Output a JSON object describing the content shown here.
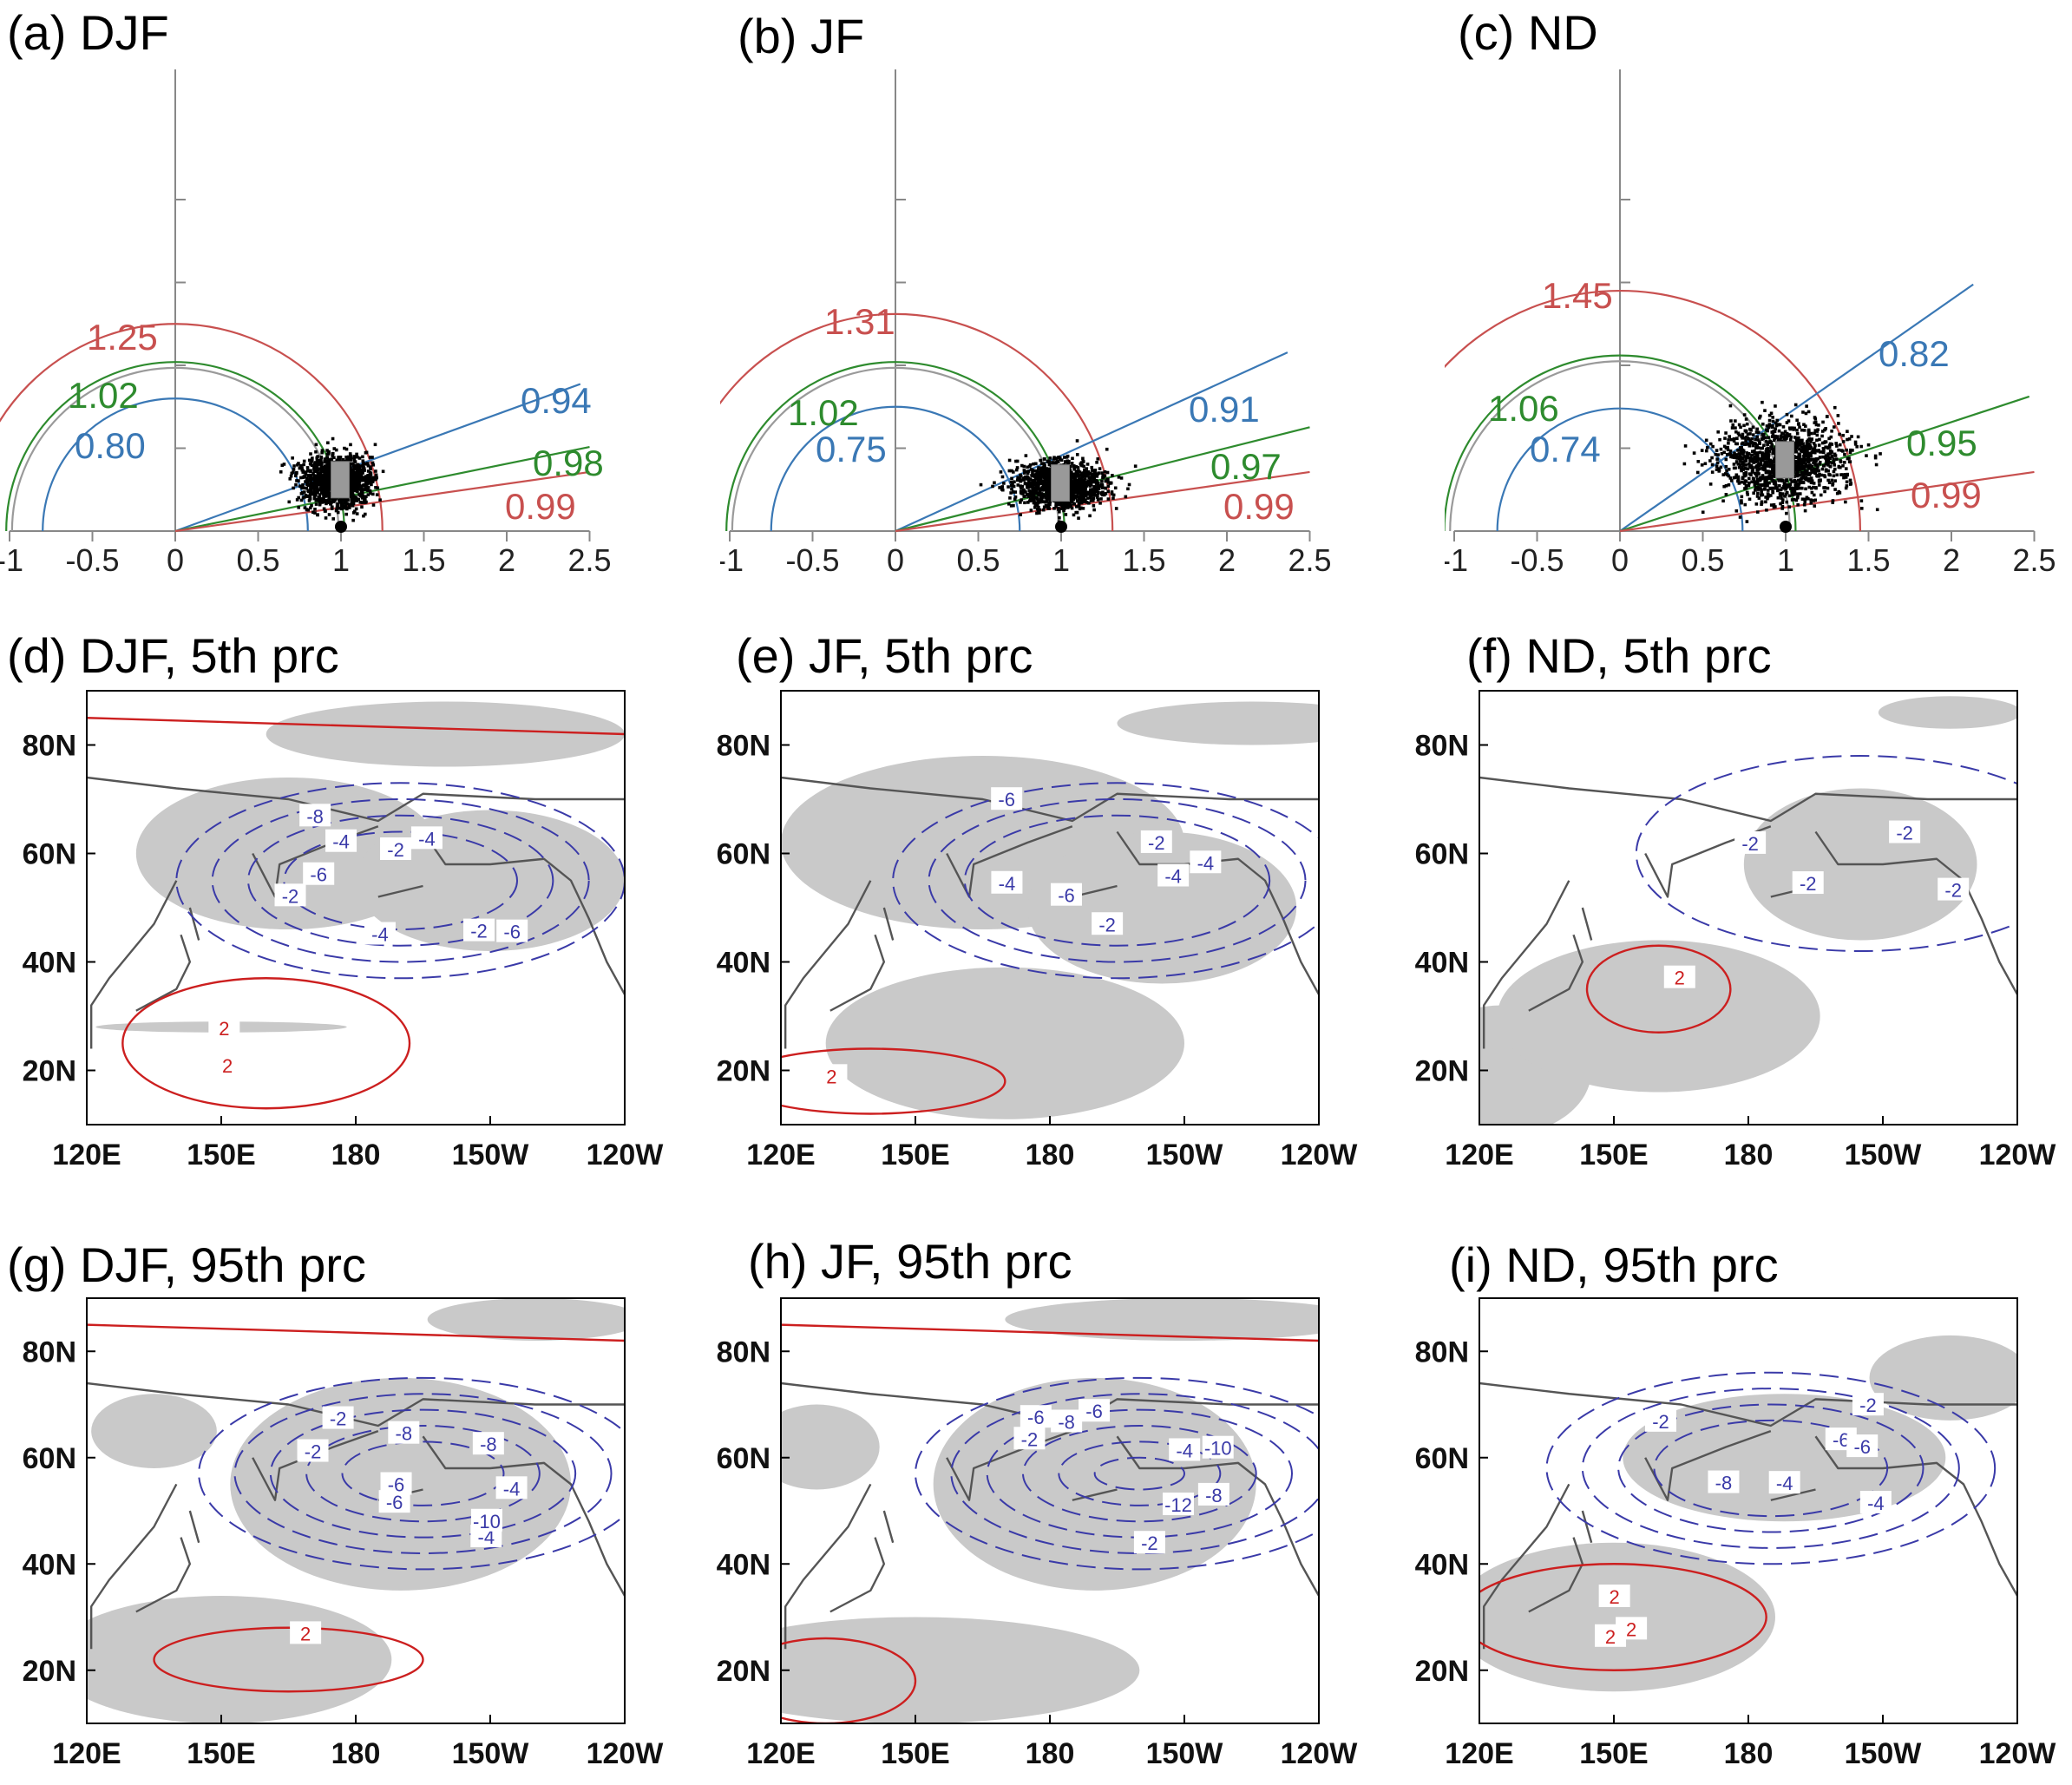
{
  "colors": {
    "red": "#c8504f",
    "green": "#2e8b2e",
    "blue": "#3a78b5",
    "gray": "#9a9a9a",
    "map_red": "#cc1f1f",
    "map_blue": "#3a3aa8",
    "shade": "#c9c9c9",
    "coast": "#555555"
  },
  "taylor": {
    "x_ticks": [
      "-1",
      "-0.5",
      "0",
      "0.5",
      "1",
      "1.5",
      "2",
      "2.5"
    ],
    "panels": [
      {
        "title": "(a) DJF",
        "red_std": "1.25",
        "green_std": "1.02",
        "blue_std": "0.80",
        "blue_corr": "0.94",
        "green_corr": "0.98",
        "red_corr": "0.99"
      },
      {
        "title": "(b) JF",
        "red_std": "1.31",
        "green_std": "1.02",
        "blue_std": "0.75",
        "blue_corr": "0.91",
        "green_corr": "0.97",
        "red_corr": "0.99"
      },
      {
        "title": "(c) ND",
        "red_std": "1.45",
        "green_std": "1.06",
        "blue_std": "0.74",
        "blue_corr": "0.82",
        "green_corr": "0.95",
        "red_corr": "0.99"
      }
    ]
  },
  "maps": {
    "x_ticks": [
      "120E",
      "150E",
      "180",
      "150W",
      "120W"
    ],
    "y_ticks": [
      "80N",
      "60N",
      "40N",
      "20N"
    ],
    "panels": [
      {
        "title": "(d) DJF, 5th prc",
        "labels": [
          "-2",
          "-2",
          "-4",
          "-6",
          "-4",
          "-8",
          "-6",
          "-4",
          "-2",
          "2",
          "2"
        ]
      },
      {
        "title": "(e) JF, 5th prc",
        "labels": [
          "-4",
          "-6",
          "-4",
          "-2",
          "-2",
          "-6",
          "-4",
          "2"
        ]
      },
      {
        "title": "(f) ND, 5th prc",
        "labels": [
          "-2",
          "-2",
          "-2",
          "-2",
          "2"
        ]
      },
      {
        "title": "(g) DJF, 95th prc",
        "labels": [
          "-2",
          "-2",
          "-4",
          "-6",
          "-8",
          "-10",
          "-8",
          "-6",
          "-4",
          "2"
        ]
      },
      {
        "title": "(h) JF, 95th prc",
        "labels": [
          "-2",
          "-2",
          "-6",
          "-8",
          "-10",
          "-12",
          "-8",
          "-6",
          "-4"
        ]
      },
      {
        "title": "(i) ND, 95th prc",
        "labels": [
          "-2",
          "-4",
          "-6",
          "-8",
          "-6",
          "-4",
          "-2",
          "2",
          "2",
          "2"
        ]
      }
    ]
  },
  "chart_data": [
    {
      "type": "scatter",
      "title": "(a) DJF",
      "x_ticks": [
        -1,
        -0.5,
        0,
        0.5,
        1,
        1.5,
        2,
        2.5
      ],
      "reference_point": [
        1,
        0
      ],
      "std_arcs": [
        {
          "value": 1.25,
          "color": "red"
        },
        {
          "value": 1.02,
          "color": "green"
        },
        {
          "value": 0.8,
          "color": "blue"
        }
      ],
      "corr_lines": [
        {
          "value": 0.94,
          "color": "blue"
        },
        {
          "value": 0.98,
          "color": "green"
        },
        {
          "value": 0.99,
          "color": "red"
        }
      ]
    },
    {
      "type": "scatter",
      "title": "(b) JF",
      "x_ticks": [
        -1,
        -0.5,
        0,
        0.5,
        1,
        1.5,
        2,
        2.5
      ],
      "reference_point": [
        1,
        0
      ],
      "std_arcs": [
        {
          "value": 1.31,
          "color": "red"
        },
        {
          "value": 1.02,
          "color": "green"
        },
        {
          "value": 0.75,
          "color": "blue"
        }
      ],
      "corr_lines": [
        {
          "value": 0.91,
          "color": "blue"
        },
        {
          "value": 0.97,
          "color": "green"
        },
        {
          "value": 0.99,
          "color": "red"
        }
      ]
    },
    {
      "type": "scatter",
      "title": "(c) ND",
      "x_ticks": [
        -1,
        -0.5,
        0,
        0.5,
        1,
        1.5,
        2,
        2.5
      ],
      "reference_point": [
        1,
        0
      ],
      "std_arcs": [
        {
          "value": 1.45,
          "color": "red"
        },
        {
          "value": 1.06,
          "color": "green"
        },
        {
          "value": 0.74,
          "color": "blue"
        }
      ],
      "corr_lines": [
        {
          "value": 0.82,
          "color": "blue"
        },
        {
          "value": 0.95,
          "color": "green"
        },
        {
          "value": 0.99,
          "color": "red"
        }
      ]
    }
  ]
}
